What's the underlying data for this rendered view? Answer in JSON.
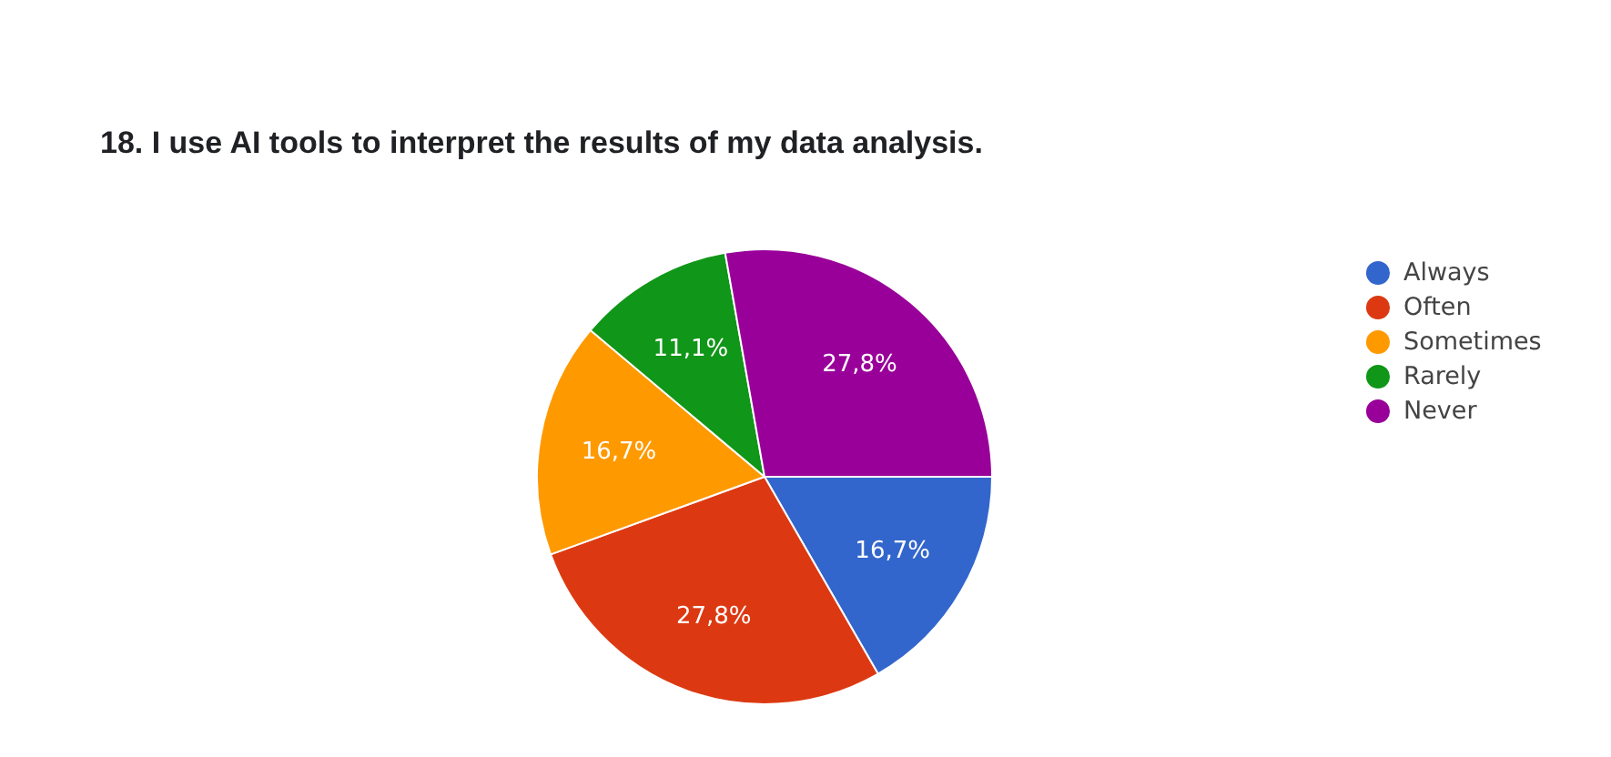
{
  "chart_data": {
    "type": "pie",
    "title": "18. I use AI tools to interpret the results of my data analysis.",
    "categories": [
      "Always",
      "Often",
      "Sometimes",
      "Rarely",
      "Never"
    ],
    "values": [
      16.7,
      27.8,
      16.7,
      11.1,
      27.8
    ],
    "colors": [
      "#3366cc",
      "#dc3912",
      "#ff9900",
      "#109618",
      "#990099"
    ],
    "value_labels": [
      "16,7%",
      "27,8%",
      "16,7%",
      "11,1%",
      "27,8%"
    ],
    "legend": "right"
  }
}
